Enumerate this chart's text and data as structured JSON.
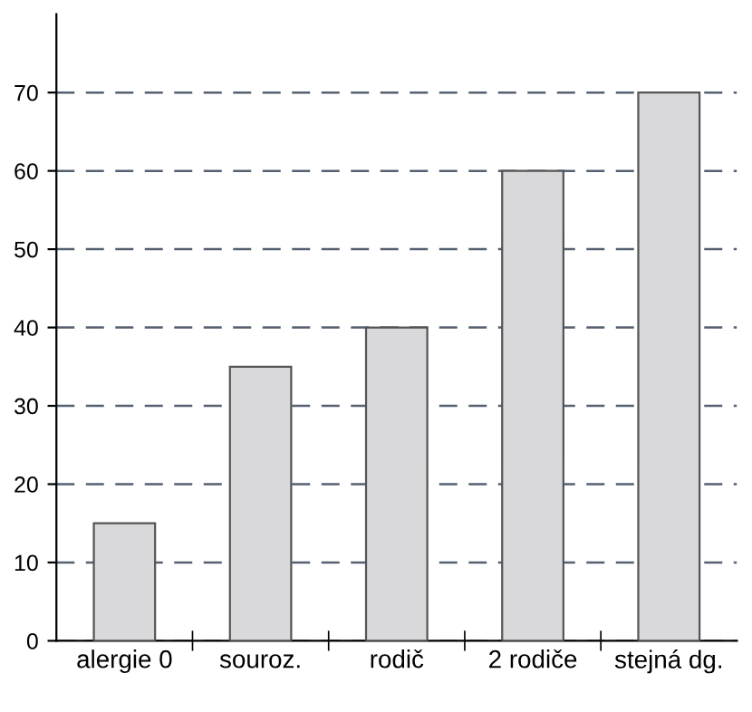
{
  "chart_data": {
    "type": "bar",
    "categories": [
      "alergie 0",
      "souroz.",
      "rodič",
      "2 rodiče",
      "stejná dg."
    ],
    "values": [
      15,
      35,
      40,
      60,
      70
    ],
    "color": "#d9d9dc",
    "ylim": [
      0,
      80
    ],
    "yticks": [
      0,
      10,
      20,
      30,
      40,
      50,
      60,
      70
    ],
    "grid": "y"
  }
}
